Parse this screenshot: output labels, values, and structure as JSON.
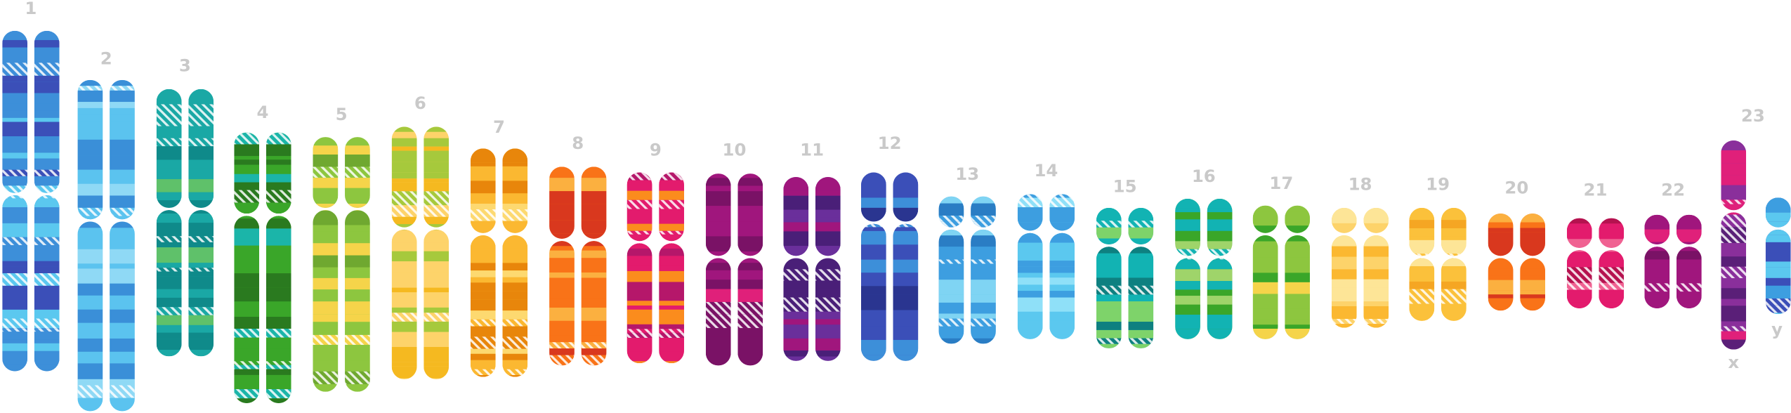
{
  "chromosomes": [
    {
      "label": "1"
    },
    {
      "label": "2"
    },
    {
      "label": "3"
    },
    {
      "label": "4"
    },
    {
      "label": "5"
    },
    {
      "label": "6"
    },
    {
      "label": "7"
    },
    {
      "label": "8"
    },
    {
      "label": "9"
    },
    {
      "label": "10"
    },
    {
      "label": "11"
    },
    {
      "label": "12"
    },
    {
      "label": "13"
    },
    {
      "label": "14"
    },
    {
      "label": "15"
    },
    {
      "label": "16"
    },
    {
      "label": "17"
    },
    {
      "label": "18"
    },
    {
      "label": "19"
    },
    {
      "label": "20"
    },
    {
      "label": "21"
    },
    {
      "label": "22"
    }
  ],
  "sex_chromosomes": {
    "label": "23",
    "x": "x",
    "y": "y"
  }
}
